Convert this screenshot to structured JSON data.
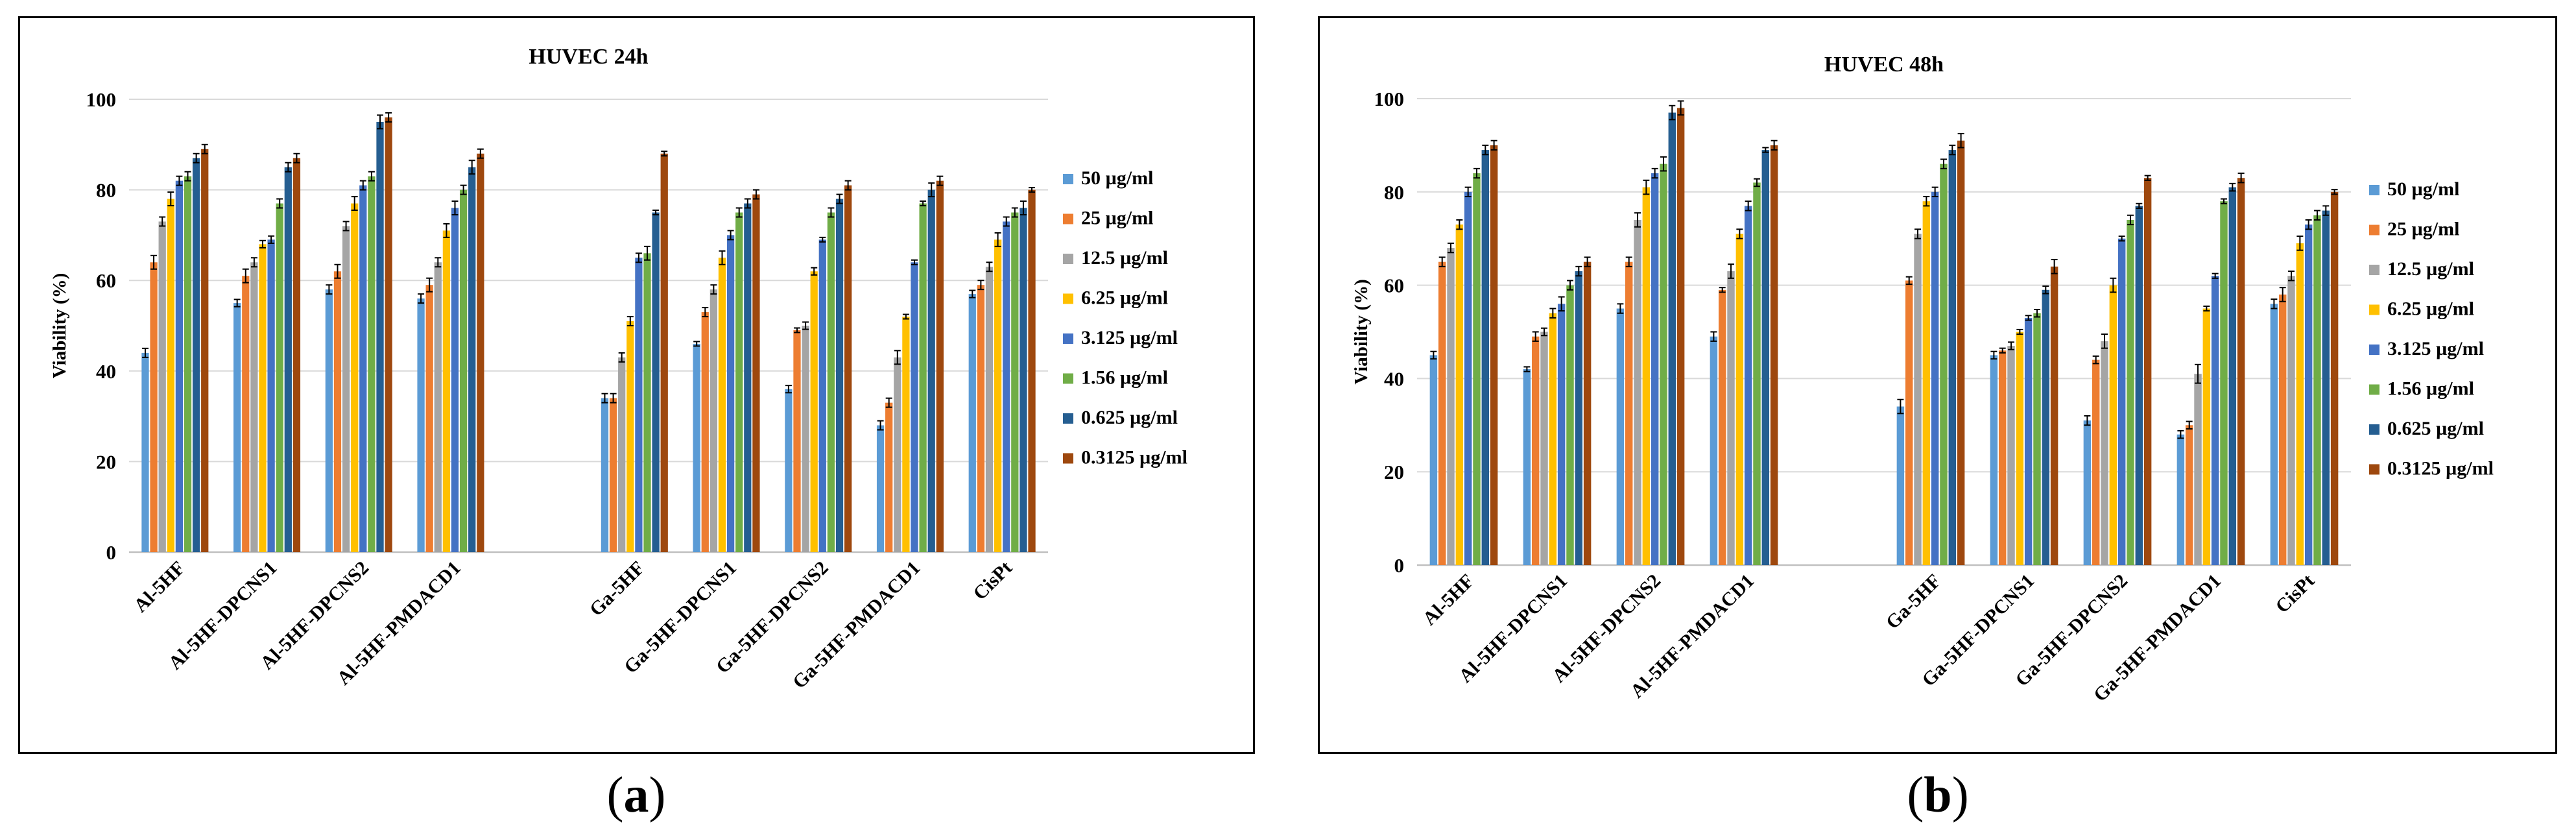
{
  "legend": [
    {
      "label": "50 µg/ml",
      "color": "#5B9BD5"
    },
    {
      "label": "25 µg/ml",
      "color": "#ED7D31"
    },
    {
      "label": "12.5 µg/ml",
      "color": "#A5A5A5"
    },
    {
      "label": "6.25 µg/ml",
      "color": "#FFC000"
    },
    {
      "label": "3.125 µg/ml",
      "color": "#4472C4"
    },
    {
      "label": "1.56 µg/ml",
      "color": "#70AD47"
    },
    {
      "label": "0.625 µg/ml",
      "color": "#255E91"
    },
    {
      "label": "0.3125 µg/ml",
      "color": "#9E480E"
    }
  ],
  "chart_data": [
    {
      "type": "bar",
      "title": "HUVEC  24h",
      "caption": "a",
      "xlabel": "",
      "ylabel": "Viability (%)",
      "ylim": [
        0,
        100
      ],
      "yticks": [
        0,
        20,
        40,
        60,
        80,
        100
      ],
      "gridlines": true,
      "legend_position": "right",
      "categories": [
        "Al-5HF",
        "Al-5HF-DPCNS1",
        "Al-5HF-DPCNS2",
        "Al-5HF-PMDACD1",
        "",
        "Ga-5HF",
        "Ga-5HF-DPCNS1",
        "Ga-5HF-DPCNS2",
        "Ga-5HF-PMDACD1",
        "CisPt"
      ],
      "series": [
        {
          "name": "50 µg/ml",
          "values": [
            44,
            55,
            58,
            56,
            null,
            34,
            46,
            36,
            28,
            57
          ],
          "errors": [
            1,
            0.8,
            1,
            1,
            null,
            1,
            0.5,
            0.8,
            1,
            0.8
          ]
        },
        {
          "name": "25 µg/ml",
          "values": [
            64,
            61,
            62,
            59,
            null,
            34,
            53,
            49,
            33,
            59
          ],
          "errors": [
            1.5,
            1.5,
            1.5,
            1.5,
            null,
            1,
            1,
            0.5,
            1,
            1
          ]
        },
        {
          "name": "12.5 µg/ml",
          "values": [
            73,
            64,
            72,
            64,
            null,
            43,
            58,
            50,
            43,
            63
          ],
          "errors": [
            1,
            1,
            1,
            1,
            null,
            1,
            1,
            0.8,
            1.5,
            1
          ]
        },
        {
          "name": "6.25 µg/ml",
          "values": [
            78,
            68,
            77,
            71,
            null,
            51,
            65,
            62,
            52,
            69
          ],
          "errors": [
            1.5,
            0.8,
            1.5,
            1.5,
            null,
            1,
            1.5,
            0.8,
            0.5,
            1.5
          ]
        },
        {
          "name": "3.125 µg/ml",
          "values": [
            82,
            69,
            81,
            76,
            null,
            65,
            70,
            69,
            64,
            73
          ],
          "errors": [
            1,
            0.8,
            1,
            1.5,
            null,
            1,
            1,
            0.5,
            0.5,
            1
          ]
        },
        {
          "name": "1.56 µg/ml",
          "values": [
            83,
            77,
            83,
            80,
            null,
            66,
            75,
            75,
            77,
            75
          ],
          "errors": [
            1,
            1,
            1,
            1,
            null,
            1.5,
            1,
            1,
            0.5,
            1
          ]
        },
        {
          "name": "0.625 µg/ml",
          "values": [
            87,
            85,
            95,
            85,
            null,
            75,
            77,
            78,
            80,
            76
          ],
          "errors": [
            1,
            1,
            1.5,
            1.5,
            null,
            0.5,
            1,
            1,
            1.5,
            1.5
          ]
        },
        {
          "name": "0.3125 µg/ml",
          "values": [
            89,
            87,
            96,
            88,
            null,
            88,
            79,
            81,
            82,
            80
          ],
          "errors": [
            1,
            1,
            1,
            1,
            null,
            0.5,
            1,
            1,
            1,
            0.5
          ]
        }
      ]
    },
    {
      "type": "bar",
      "title": "HUVEC  48h",
      "caption": "b",
      "xlabel": "",
      "ylabel": "Viability (%)",
      "ylim": [
        0,
        100
      ],
      "yticks": [
        0,
        20,
        40,
        60,
        80,
        100
      ],
      "gridlines": true,
      "legend_position": "right",
      "categories": [
        "Al-5HF",
        "Al-5HF-DPCNS1",
        "Al-5HF-DPCNS2",
        "Al-5HF-PMDACD1",
        "",
        "Ga-5HF",
        "Ga-5HF-DPCNS1",
        "Ga-5HF-DPCNS2",
        "Ga-5HF-PMDACD1",
        "CisPt"
      ],
      "series": [
        {
          "name": "50 µg/ml",
          "values": [
            45,
            42,
            55,
            49,
            null,
            34,
            45,
            31,
            28,
            56
          ],
          "errors": [
            0.8,
            0.5,
            1,
            1,
            null,
            1.5,
            0.8,
            1,
            0.8,
            1
          ]
        },
        {
          "name": "25 µg/ml",
          "values": [
            65,
            49,
            65,
            59,
            null,
            61,
            46,
            44,
            30,
            58
          ],
          "errors": [
            1,
            1,
            1,
            0.5,
            null,
            0.8,
            0.5,
            0.8,
            0.8,
            1.5
          ]
        },
        {
          "name": "12.5 µg/ml",
          "values": [
            68,
            50,
            74,
            63,
            null,
            71,
            47,
            48,
            41,
            62
          ],
          "errors": [
            1,
            0.8,
            1.5,
            1.5,
            null,
            1,
            0.8,
            1.5,
            2,
            1
          ]
        },
        {
          "name": "6.25 µg/ml",
          "values": [
            73,
            54,
            81,
            71,
            null,
            78,
            50,
            60,
            55,
            69
          ],
          "errors": [
            1,
            1,
            1.5,
            1,
            null,
            1,
            0.5,
            1.5,
            0.5,
            1.5
          ]
        },
        {
          "name": "3.125 µg/ml",
          "values": [
            80,
            56,
            84,
            77,
            null,
            80,
            53,
            70,
            62,
            73
          ],
          "errors": [
            1,
            1.5,
            1,
            1,
            null,
            1,
            0.5,
            0.5,
            0.5,
            1
          ]
        },
        {
          "name": "1.56 µg/ml",
          "values": [
            84,
            60,
            86,
            82,
            null,
            86,
            54,
            74,
            78,
            75
          ],
          "errors": [
            1,
            1,
            1.5,
            0.8,
            null,
            1,
            0.8,
            1,
            0.5,
            1
          ]
        },
        {
          "name": "0.625 µg/ml",
          "values": [
            89,
            63,
            97,
            89,
            null,
            89,
            59,
            77,
            81,
            76
          ],
          "errors": [
            1,
            1,
            1.5,
            0.5,
            null,
            1,
            0.8,
            0.5,
            0.8,
            1
          ]
        },
        {
          "name": "0.3125 µg/ml",
          "values": [
            90,
            65,
            98,
            90,
            null,
            91,
            64,
            83,
            83,
            80
          ],
          "errors": [
            1,
            1,
            1.5,
            1,
            null,
            1.5,
            1.5,
            0.5,
            1,
            0.5
          ]
        }
      ]
    }
  ]
}
